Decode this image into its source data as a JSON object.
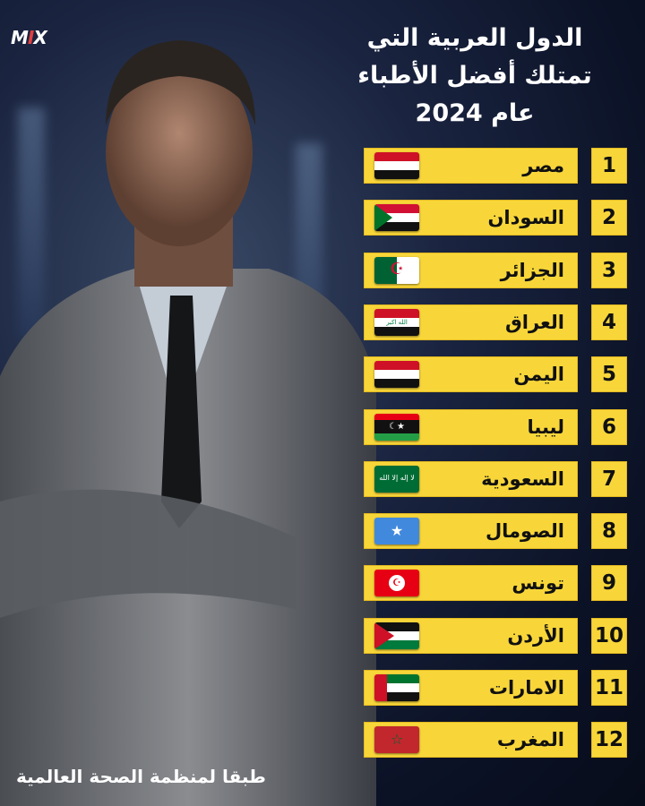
{
  "logo": "MIX",
  "title": [
    "الدول العربية التي",
    "تمتلك أفضل الأطباء",
    "عام 2024"
  ],
  "rows": [
    {
      "rank": "1",
      "name": "مصر",
      "flag": "egypt-flag"
    },
    {
      "rank": "2",
      "name": "السودان",
      "flag": "sudan-flag"
    },
    {
      "rank": "3",
      "name": "الجزائر",
      "flag": "algeria-flag"
    },
    {
      "rank": "4",
      "name": "العراق",
      "flag": "iraq-flag"
    },
    {
      "rank": "5",
      "name": "اليمن",
      "flag": "yemen-flag"
    },
    {
      "rank": "6",
      "name": "ليبيا",
      "flag": "libya-flag"
    },
    {
      "rank": "7",
      "name": "السعودية",
      "flag": "saudi-flag"
    },
    {
      "rank": "8",
      "name": "الصومال",
      "flag": "somalia-flag"
    },
    {
      "rank": "9",
      "name": "تونس",
      "flag": "tunisia-flag"
    },
    {
      "rank": "10",
      "name": "الأردن",
      "flag": "jordan-flag"
    },
    {
      "rank": "11",
      "name": "الامارات",
      "flag": "uae-flag"
    },
    {
      "rank": "12",
      "name": "المغرب",
      "flag": "morocco-flag"
    }
  ],
  "source": "طبقا لمنظمة الصحة العالمية",
  "colors": {
    "bar": "#f8d63a",
    "background": "#0b1226",
    "text": "#111111"
  }
}
